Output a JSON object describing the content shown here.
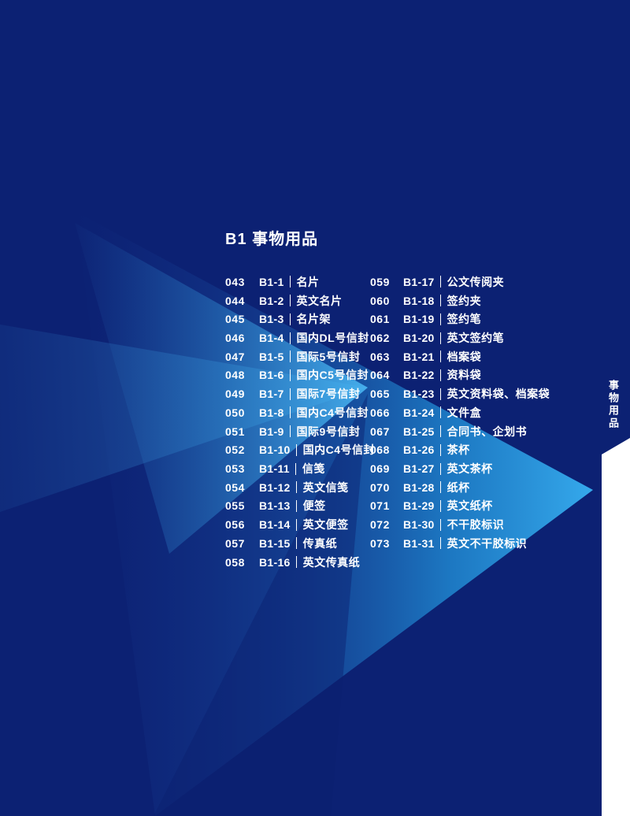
{
  "page": {
    "title": "B1 事物用品",
    "sidebar_label": "事物用品"
  },
  "toc": {
    "left_column": [
      {
        "num": "043",
        "code": "B1-1",
        "label": "名片"
      },
      {
        "num": "044",
        "code": "B1-2",
        "label": "英文名片"
      },
      {
        "num": "045",
        "code": "B1-3",
        "label": "名片架"
      },
      {
        "num": "046",
        "code": "B1-4",
        "label": "国内DL号信封"
      },
      {
        "num": "047",
        "code": "B1-5",
        "label": "国际5号信封"
      },
      {
        "num": "048",
        "code": "B1-6",
        "label": "国内C5号信封"
      },
      {
        "num": "049",
        "code": "B1-7",
        "label": "国际7号信封"
      },
      {
        "num": "050",
        "code": "B1-8",
        "label": "国内C4号信封"
      },
      {
        "num": "051",
        "code": "B1-9",
        "label": "国际9号信封"
      },
      {
        "num": "052",
        "code": "B1-10",
        "label": "国内C4号信封"
      },
      {
        "num": "053",
        "code": "B1-11",
        "label": "信笺"
      },
      {
        "num": "054",
        "code": "B1-12",
        "label": "英文信笺"
      },
      {
        "num": "055",
        "code": "B1-13",
        "label": "便签"
      },
      {
        "num": "056",
        "code": "B1-14",
        "label": "英文便签"
      },
      {
        "num": "057",
        "code": "B1-15",
        "label": "传真纸"
      },
      {
        "num": "058",
        "code": "B1-16",
        "label": "英文传真纸"
      }
    ],
    "right_column": [
      {
        "num": "059",
        "code": "B1-17",
        "label": "公文传阅夹"
      },
      {
        "num": "060",
        "code": "B1-18",
        "label": "签约夹"
      },
      {
        "num": "061",
        "code": "B1-19",
        "label": "签约笔"
      },
      {
        "num": "062",
        "code": "B1-20",
        "label": "英文签约笔"
      },
      {
        "num": "063",
        "code": "B1-21",
        "label": "档案袋"
      },
      {
        "num": "064",
        "code": "B1-22",
        "label": "资料袋"
      },
      {
        "num": "065",
        "code": "B1-23",
        "label": "英文资料袋、档案袋"
      },
      {
        "num": "066",
        "code": "B1-24",
        "label": "文件盒"
      },
      {
        "num": "067",
        "code": "B1-25",
        "label": "合同书、企划书"
      },
      {
        "num": "068",
        "code": "B1-26",
        "label": "茶杯"
      },
      {
        "num": "069",
        "code": "B1-27",
        "label": "英文茶杯"
      },
      {
        "num": "070",
        "code": "B1-28",
        "label": "纸杯"
      },
      {
        "num": "071",
        "code": "B1-29",
        "label": "英文纸杯"
      },
      {
        "num": "072",
        "code": "B1-30",
        "label": "不干胶标识"
      },
      {
        "num": "073",
        "code": "B1-31",
        "label": "英文不干胶标识"
      }
    ]
  },
  "colors": {
    "background_navy": "#0C2173",
    "accent_cyan_bright": "#35A9EC",
    "accent_blue_mid": "#1F86CF",
    "text_white": "#FFFFFF",
    "side_panel_white": "#FFFFFF"
  }
}
